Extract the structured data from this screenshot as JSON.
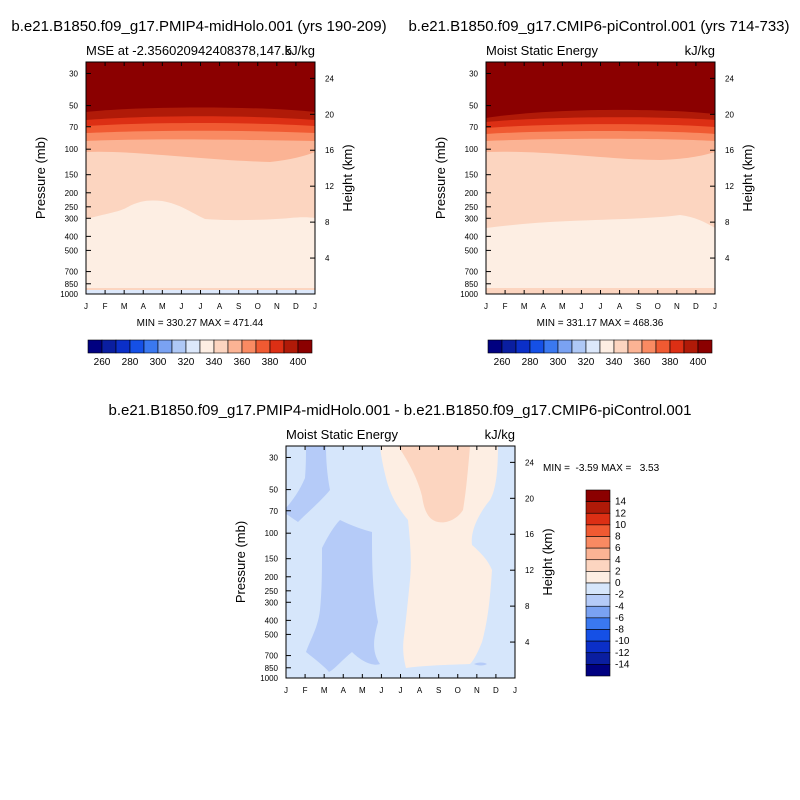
{
  "colors": {
    "mse_levels": [
      260,
      270,
      280,
      290,
      300,
      310,
      320,
      330,
      340,
      350,
      360,
      370,
      380,
      390,
      400
    ],
    "mse_palette": [
      "#000080",
      "#0a1ea0",
      "#0b2fc8",
      "#1550e6",
      "#3a78f0",
      "#7aa2f2",
      "#aec8f6",
      "#dce8fb",
      "#fdeee3",
      "#fcd5c0",
      "#fbb394",
      "#f98a62",
      "#f05a32",
      "#dc2f14",
      "#b01a08",
      "#8b0000"
    ],
    "diff_palette": [
      "#000080",
      "#0a1ea0",
      "#0b2fc8",
      "#1550e6",
      "#3a78f0",
      "#7aa2f2",
      "#b5cbf8",
      "#d6e6fb",
      "#fdeee3",
      "#fcd5c0",
      "#fbb394",
      "#f98a62",
      "#f05a32",
      "#dc2f14",
      "#b01a08",
      "#8b0000"
    ]
  },
  "chart_data": [
    {
      "type": "contour",
      "title": "b.e21.B1850.f09_g17.PMIP4-midHolo.001 (yrs 190-209)",
      "subtitle_left": "MSE at -2.356020942408378,147.5",
      "subtitle_right": "kJ/kg",
      "ylabel": "Pressure (mb)",
      "ylabel_right": "Height (km)",
      "x_ticks": [
        "J",
        "F",
        "M",
        "A",
        "M",
        "J",
        "J",
        "A",
        "S",
        "O",
        "N",
        "D",
        "J"
      ],
      "y_ticks": [
        "30",
        "50",
        "70",
        "100",
        "150",
        "200",
        "250",
        "300",
        "400",
        "500",
        "700",
        "850",
        "1000"
      ],
      "height_ticks": [
        "24",
        "20",
        "16",
        "12",
        "8",
        "4"
      ],
      "stats": "MIN = 330.27 MAX = 471.44",
      "levels": [
        260,
        270,
        280,
        290,
        300,
        310,
        320,
        330,
        340,
        350,
        360,
        370,
        380,
        390,
        400
      ],
      "colorbar_labels": [
        "260",
        "280",
        "300",
        "320",
        "340",
        "360",
        "380",
        "400"
      ],
      "value_range": [
        330.27,
        471.44
      ]
    },
    {
      "type": "contour",
      "title": "b.e21.B1850.f09_g17.CMIP6-piControl.001 (yrs 714-733)",
      "subtitle_left": "Moist Static Energy",
      "subtitle_right": "kJ/kg",
      "ylabel": "Pressure (mb)",
      "ylabel_right": "Height (km)",
      "x_ticks": [
        "J",
        "F",
        "M",
        "A",
        "M",
        "J",
        "J",
        "A",
        "S",
        "O",
        "N",
        "D",
        "J"
      ],
      "y_ticks": [
        "30",
        "50",
        "70",
        "100",
        "150",
        "200",
        "250",
        "300",
        "400",
        "500",
        "700",
        "850",
        "1000"
      ],
      "height_ticks": [
        "24",
        "20",
        "16",
        "12",
        "8",
        "4"
      ],
      "stats": "MIN = 331.17 MAX = 468.36",
      "levels": [
        260,
        270,
        280,
        290,
        300,
        310,
        320,
        330,
        340,
        350,
        360,
        370,
        380,
        390,
        400
      ],
      "colorbar_labels": [
        "260",
        "280",
        "300",
        "320",
        "340",
        "360",
        "380",
        "400"
      ],
      "value_range": [
        331.17,
        468.36
      ]
    },
    {
      "type": "contour",
      "title": "b.e21.B1850.f09_g17.PMIP4-midHolo.001 - b.e21.B1850.f09_g17.CMIP6-piControl.001",
      "subtitle_left": "Moist Static Energy",
      "subtitle_right": "kJ/kg",
      "ylabel": "Pressure (mb)",
      "ylabel_right": "Height (km)",
      "x_ticks": [
        "J",
        "F",
        "M",
        "A",
        "M",
        "J",
        "J",
        "A",
        "S",
        "O",
        "N",
        "D",
        "J"
      ],
      "y_ticks": [
        "30",
        "50",
        "70",
        "100",
        "150",
        "200",
        "250",
        "300",
        "400",
        "500",
        "700",
        "850",
        "1000"
      ],
      "height_ticks": [
        "24",
        "20",
        "16",
        "12",
        "8",
        "4"
      ],
      "stats": "MIN =  -3.59 MAX =   3.53",
      "levels": [
        -14,
        -12,
        -10,
        -8,
        -6,
        -4,
        -2,
        0,
        2,
        4,
        6,
        8,
        10,
        12,
        14
      ],
      "colorbar_labels": [
        "14",
        "12",
        "10",
        "8",
        "6",
        "4",
        "2",
        "0",
        "-2",
        "-4",
        "-6",
        "-8",
        "-10",
        "-12",
        "-14"
      ],
      "value_range": [
        -3.59,
        3.53
      ]
    }
  ]
}
